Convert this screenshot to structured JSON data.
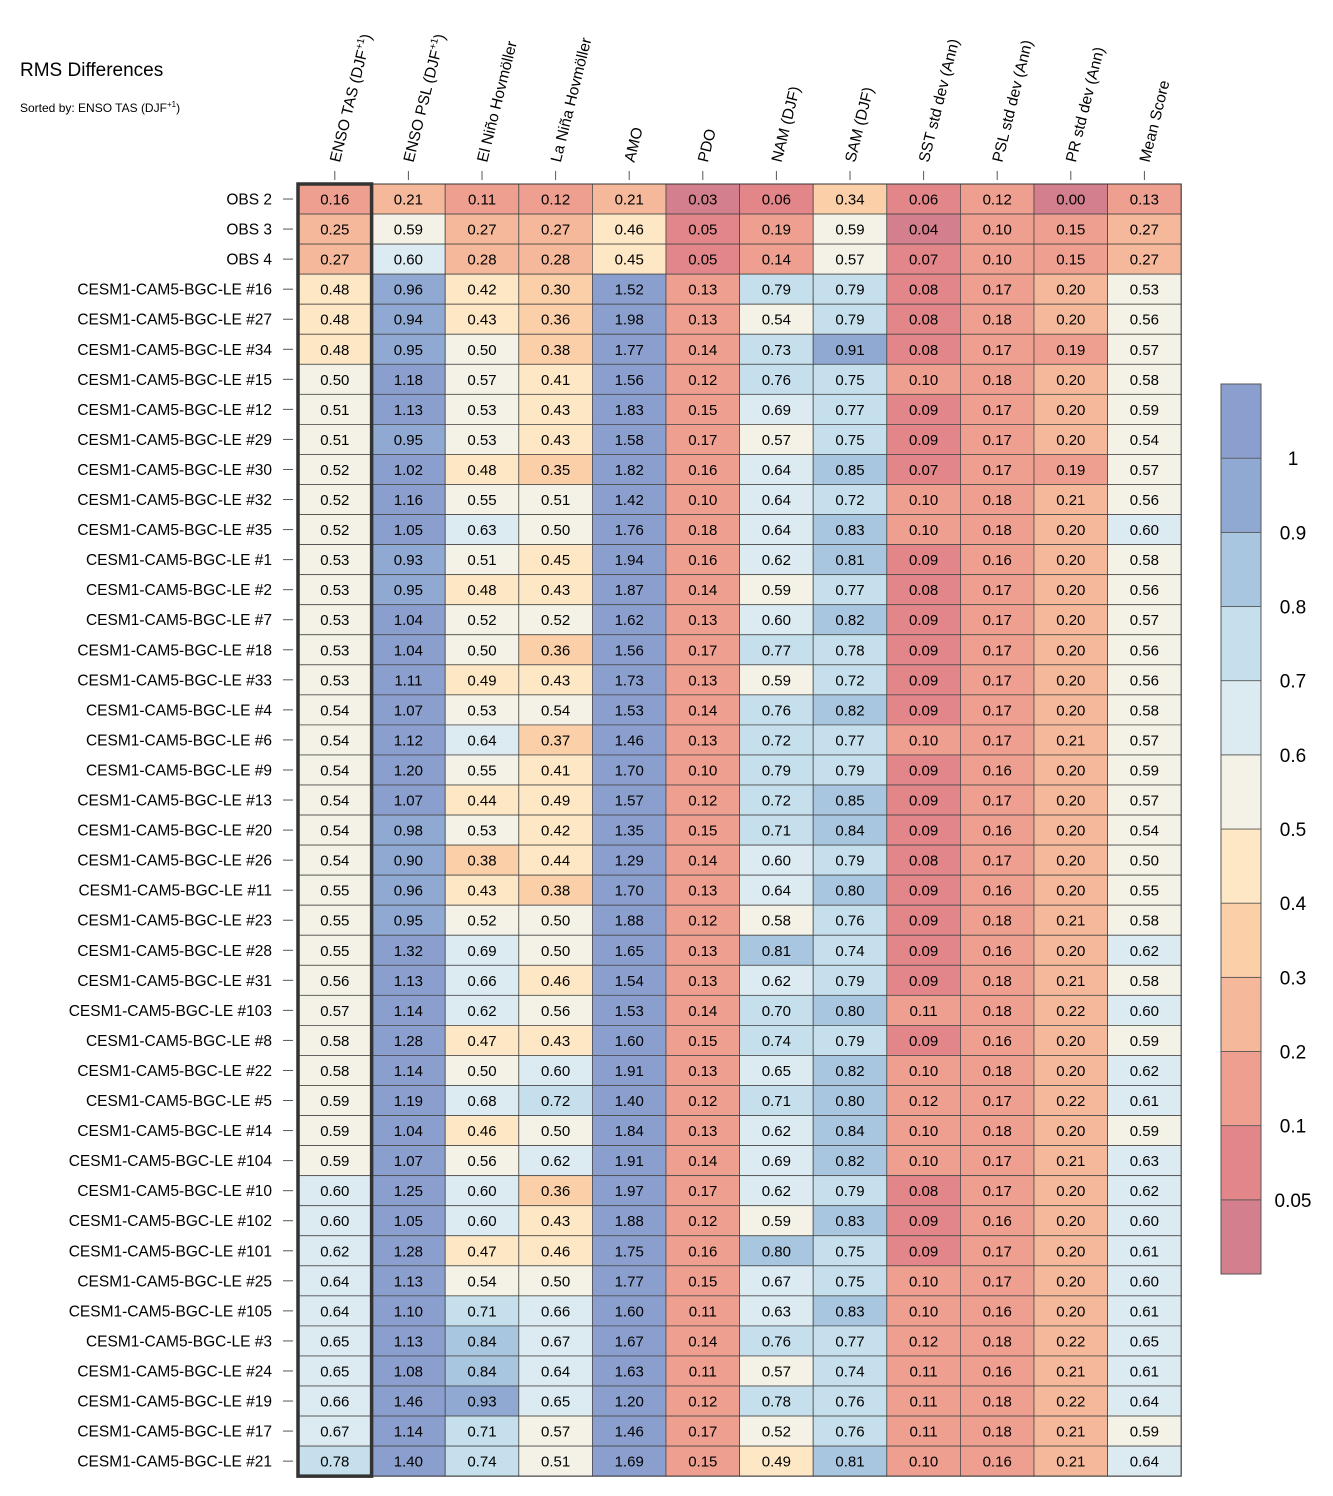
{
  "title": "RMS Differences",
  "subtitle_prefix": "Sorted by: ENSO TAS (DJF",
  "subtitle_sup": "+1",
  "subtitle_suffix": ")",
  "chart_data": {
    "type": "heatmap",
    "columns": [
      {
        "label": "ENSO TAS (DJF",
        "sup": "+1",
        "suffix": ")"
      },
      {
        "label": "ENSO PSL (DJF",
        "sup": "+1",
        "suffix": ")"
      },
      {
        "label": "El Niño Hovmöller",
        "sup": "",
        "suffix": ""
      },
      {
        "label": "La Niña Hovmöller",
        "sup": "",
        "suffix": ""
      },
      {
        "label": "AMO",
        "sup": "",
        "suffix": ""
      },
      {
        "label": "PDO",
        "sup": "",
        "suffix": ""
      },
      {
        "label": "NAM (DJF)",
        "sup": "",
        "suffix": ""
      },
      {
        "label": "SAM (DJF)",
        "sup": "",
        "suffix": ""
      },
      {
        "label": "SST std dev (Ann)",
        "sup": "",
        "suffix": ""
      },
      {
        "label": "PSL std dev (Ann)",
        "sup": "",
        "suffix": ""
      },
      {
        "label": "PR std dev (Ann)",
        "sup": "",
        "suffix": ""
      },
      {
        "label": "Mean Score",
        "sup": "",
        "suffix": ""
      }
    ],
    "rows": [
      "OBS 2",
      "OBS 3",
      "OBS 4",
      "CESM1-CAM5-BGC-LE #16",
      "CESM1-CAM5-BGC-LE #27",
      "CESM1-CAM5-BGC-LE #34",
      "CESM1-CAM5-BGC-LE #15",
      "CESM1-CAM5-BGC-LE #12",
      "CESM1-CAM5-BGC-LE #29",
      "CESM1-CAM5-BGC-LE #30",
      "CESM1-CAM5-BGC-LE #32",
      "CESM1-CAM5-BGC-LE #35",
      "CESM1-CAM5-BGC-LE #1",
      "CESM1-CAM5-BGC-LE #2",
      "CESM1-CAM5-BGC-LE #7",
      "CESM1-CAM5-BGC-LE #18",
      "CESM1-CAM5-BGC-LE #33",
      "CESM1-CAM5-BGC-LE #4",
      "CESM1-CAM5-BGC-LE #6",
      "CESM1-CAM5-BGC-LE #9",
      "CESM1-CAM5-BGC-LE #13",
      "CESM1-CAM5-BGC-LE #20",
      "CESM1-CAM5-BGC-LE #26",
      "CESM1-CAM5-BGC-LE #11",
      "CESM1-CAM5-BGC-LE #23",
      "CESM1-CAM5-BGC-LE #28",
      "CESM1-CAM5-BGC-LE #31",
      "CESM1-CAM5-BGC-LE #103",
      "CESM1-CAM5-BGC-LE #8",
      "CESM1-CAM5-BGC-LE #22",
      "CESM1-CAM5-BGC-LE #5",
      "CESM1-CAM5-BGC-LE #14",
      "CESM1-CAM5-BGC-LE #104",
      "CESM1-CAM5-BGC-LE #10",
      "CESM1-CAM5-BGC-LE #102",
      "CESM1-CAM5-BGC-LE #101",
      "CESM1-CAM5-BGC-LE #25",
      "CESM1-CAM5-BGC-LE #105",
      "CESM1-CAM5-BGC-LE #3",
      "CESM1-CAM5-BGC-LE #24",
      "CESM1-CAM5-BGC-LE #19",
      "CESM1-CAM5-BGC-LE #17",
      "CESM1-CAM5-BGC-LE #21"
    ],
    "values": [
      [
        "0.16",
        "0.21",
        "0.11",
        "0.12",
        "0.21",
        "0.03",
        "0.06",
        "0.34",
        "0.06",
        "0.12",
        "0.00",
        "0.13"
      ],
      [
        "0.25",
        "0.59",
        "0.27",
        "0.27",
        "0.46",
        "0.05",
        "0.19",
        "0.59",
        "0.04",
        "0.10",
        "0.15",
        "0.27"
      ],
      [
        "0.27",
        "0.60",
        "0.28",
        "0.28",
        "0.45",
        "0.05",
        "0.14",
        "0.57",
        "0.07",
        "0.10",
        "0.15",
        "0.27"
      ],
      [
        "0.48",
        "0.96",
        "0.42",
        "0.30",
        "1.52",
        "0.13",
        "0.79",
        "0.79",
        "0.08",
        "0.17",
        "0.20",
        "0.53"
      ],
      [
        "0.48",
        "0.94",
        "0.43",
        "0.36",
        "1.98",
        "0.13",
        "0.54",
        "0.79",
        "0.08",
        "0.18",
        "0.20",
        "0.56"
      ],
      [
        "0.48",
        "0.95",
        "0.50",
        "0.38",
        "1.77",
        "0.14",
        "0.73",
        "0.91",
        "0.08",
        "0.17",
        "0.19",
        "0.57"
      ],
      [
        "0.50",
        "1.18",
        "0.57",
        "0.41",
        "1.56",
        "0.12",
        "0.76",
        "0.75",
        "0.10",
        "0.18",
        "0.20",
        "0.58"
      ],
      [
        "0.51",
        "1.13",
        "0.53",
        "0.43",
        "1.83",
        "0.15",
        "0.69",
        "0.77",
        "0.09",
        "0.17",
        "0.20",
        "0.59"
      ],
      [
        "0.51",
        "0.95",
        "0.53",
        "0.43",
        "1.58",
        "0.17",
        "0.57",
        "0.75",
        "0.09",
        "0.17",
        "0.20",
        "0.54"
      ],
      [
        "0.52",
        "1.02",
        "0.48",
        "0.35",
        "1.82",
        "0.16",
        "0.64",
        "0.85",
        "0.07",
        "0.17",
        "0.19",
        "0.57"
      ],
      [
        "0.52",
        "1.16",
        "0.55",
        "0.51",
        "1.42",
        "0.10",
        "0.64",
        "0.72",
        "0.10",
        "0.18",
        "0.21",
        "0.56"
      ],
      [
        "0.52",
        "1.05",
        "0.63",
        "0.50",
        "1.76",
        "0.18",
        "0.64",
        "0.83",
        "0.10",
        "0.18",
        "0.20",
        "0.60"
      ],
      [
        "0.53",
        "0.93",
        "0.51",
        "0.45",
        "1.94",
        "0.16",
        "0.62",
        "0.81",
        "0.09",
        "0.16",
        "0.20",
        "0.58"
      ],
      [
        "0.53",
        "0.95",
        "0.48",
        "0.43",
        "1.87",
        "0.14",
        "0.59",
        "0.77",
        "0.08",
        "0.17",
        "0.20",
        "0.56"
      ],
      [
        "0.53",
        "1.04",
        "0.52",
        "0.52",
        "1.62",
        "0.13",
        "0.60",
        "0.82",
        "0.09",
        "0.17",
        "0.20",
        "0.57"
      ],
      [
        "0.53",
        "1.04",
        "0.50",
        "0.36",
        "1.56",
        "0.17",
        "0.77",
        "0.78",
        "0.09",
        "0.17",
        "0.20",
        "0.56"
      ],
      [
        "0.53",
        "1.11",
        "0.49",
        "0.43",
        "1.73",
        "0.13",
        "0.59",
        "0.72",
        "0.09",
        "0.17",
        "0.20",
        "0.56"
      ],
      [
        "0.54",
        "1.07",
        "0.53",
        "0.54",
        "1.53",
        "0.14",
        "0.76",
        "0.82",
        "0.09",
        "0.17",
        "0.20",
        "0.58"
      ],
      [
        "0.54",
        "1.12",
        "0.64",
        "0.37",
        "1.46",
        "0.13",
        "0.72",
        "0.77",
        "0.10",
        "0.17",
        "0.21",
        "0.57"
      ],
      [
        "0.54",
        "1.20",
        "0.55",
        "0.41",
        "1.70",
        "0.10",
        "0.79",
        "0.79",
        "0.09",
        "0.16",
        "0.20",
        "0.59"
      ],
      [
        "0.54",
        "1.07",
        "0.44",
        "0.49",
        "1.57",
        "0.12",
        "0.72",
        "0.85",
        "0.09",
        "0.17",
        "0.20",
        "0.57"
      ],
      [
        "0.54",
        "0.98",
        "0.53",
        "0.42",
        "1.35",
        "0.15",
        "0.71",
        "0.84",
        "0.09",
        "0.16",
        "0.20",
        "0.54"
      ],
      [
        "0.54",
        "0.90",
        "0.38",
        "0.44",
        "1.29",
        "0.14",
        "0.60",
        "0.79",
        "0.08",
        "0.17",
        "0.20",
        "0.50"
      ],
      [
        "0.55",
        "0.96",
        "0.43",
        "0.38",
        "1.70",
        "0.13",
        "0.64",
        "0.80",
        "0.09",
        "0.16",
        "0.20",
        "0.55"
      ],
      [
        "0.55",
        "0.95",
        "0.52",
        "0.50",
        "1.88",
        "0.12",
        "0.58",
        "0.76",
        "0.09",
        "0.18",
        "0.21",
        "0.58"
      ],
      [
        "0.55",
        "1.32",
        "0.69",
        "0.50",
        "1.65",
        "0.13",
        "0.81",
        "0.74",
        "0.09",
        "0.16",
        "0.20",
        "0.62"
      ],
      [
        "0.56",
        "1.13",
        "0.66",
        "0.46",
        "1.54",
        "0.13",
        "0.62",
        "0.79",
        "0.09",
        "0.18",
        "0.21",
        "0.58"
      ],
      [
        "0.57",
        "1.14",
        "0.62",
        "0.56",
        "1.53",
        "0.14",
        "0.70",
        "0.80",
        "0.11",
        "0.18",
        "0.22",
        "0.60"
      ],
      [
        "0.58",
        "1.28",
        "0.47",
        "0.43",
        "1.60",
        "0.15",
        "0.74",
        "0.79",
        "0.09",
        "0.16",
        "0.20",
        "0.59"
      ],
      [
        "0.58",
        "1.14",
        "0.50",
        "0.60",
        "1.91",
        "0.13",
        "0.65",
        "0.82",
        "0.10",
        "0.18",
        "0.20",
        "0.62"
      ],
      [
        "0.59",
        "1.19",
        "0.68",
        "0.72",
        "1.40",
        "0.12",
        "0.71",
        "0.80",
        "0.12",
        "0.17",
        "0.22",
        "0.61"
      ],
      [
        "0.59",
        "1.04",
        "0.46",
        "0.50",
        "1.84",
        "0.13",
        "0.62",
        "0.84",
        "0.10",
        "0.18",
        "0.20",
        "0.59"
      ],
      [
        "0.59",
        "1.07",
        "0.56",
        "0.62",
        "1.91",
        "0.14",
        "0.69",
        "0.82",
        "0.10",
        "0.17",
        "0.21",
        "0.63"
      ],
      [
        "0.60",
        "1.25",
        "0.60",
        "0.36",
        "1.97",
        "0.17",
        "0.62",
        "0.79",
        "0.08",
        "0.17",
        "0.20",
        "0.62"
      ],
      [
        "0.60",
        "1.05",
        "0.60",
        "0.43",
        "1.88",
        "0.12",
        "0.59",
        "0.83",
        "0.09",
        "0.16",
        "0.20",
        "0.60"
      ],
      [
        "0.62",
        "1.28",
        "0.47",
        "0.46",
        "1.75",
        "0.16",
        "0.80",
        "0.75",
        "0.09",
        "0.17",
        "0.20",
        "0.61"
      ],
      [
        "0.64",
        "1.13",
        "0.54",
        "0.50",
        "1.77",
        "0.15",
        "0.67",
        "0.75",
        "0.10",
        "0.17",
        "0.20",
        "0.60"
      ],
      [
        "0.64",
        "1.10",
        "0.71",
        "0.66",
        "1.60",
        "0.11",
        "0.63",
        "0.83",
        "0.10",
        "0.16",
        "0.20",
        "0.61"
      ],
      [
        "0.65",
        "1.13",
        "0.84",
        "0.67",
        "1.67",
        "0.14",
        "0.76",
        "0.77",
        "0.12",
        "0.18",
        "0.22",
        "0.65"
      ],
      [
        "0.65",
        "1.08",
        "0.84",
        "0.64",
        "1.63",
        "0.11",
        "0.57",
        "0.74",
        "0.11",
        "0.16",
        "0.21",
        "0.61"
      ],
      [
        "0.66",
        "1.46",
        "0.93",
        "0.65",
        "1.20",
        "0.12",
        "0.78",
        "0.76",
        "0.11",
        "0.18",
        "0.22",
        "0.64"
      ],
      [
        "0.67",
        "1.14",
        "0.71",
        "0.57",
        "1.46",
        "0.17",
        "0.52",
        "0.76",
        "0.11",
        "0.18",
        "0.21",
        "0.59"
      ],
      [
        "0.78",
        "1.40",
        "0.74",
        "0.51",
        "1.69",
        "0.15",
        "0.49",
        "0.81",
        "0.10",
        "0.16",
        "0.21",
        "0.64"
      ]
    ],
    "highlighted_column": 0,
    "colorbar": {
      "bounds": [
        0.05,
        0.1,
        0.2,
        0.3,
        0.4,
        0.5,
        0.6,
        0.7,
        0.8,
        0.9,
        1
      ],
      "labels": [
        "0.05",
        "0.1",
        "0.2",
        "0.3",
        "0.4",
        "0.5",
        "0.6",
        "0.7",
        "0.8",
        "0.9",
        "1"
      ],
      "colors": [
        "#d47f8e",
        "#e3868a",
        "#ef9f8f",
        "#f6b89a",
        "#fbcfa8",
        "#fde7c4",
        "#f4f2e6",
        "#dcebf1",
        "#c5e0ec",
        "#a9c6e0",
        "#8fa9d2",
        "#8b9fcf"
      ]
    }
  }
}
